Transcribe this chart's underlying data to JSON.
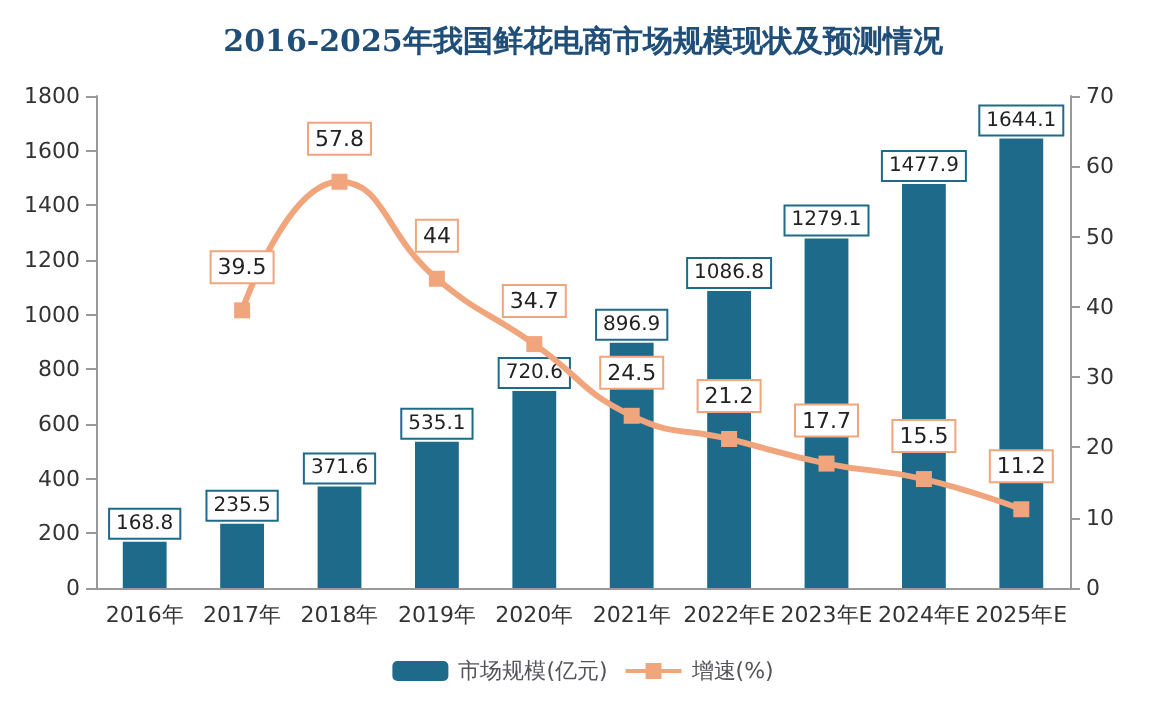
{
  "chart_data": {
    "type": "bar",
    "title": "2016-2025年我国鲜花电商市场规模现状及预测情况",
    "categories": [
      "2016年",
      "2017年",
      "2018年",
      "2019年",
      "2020年",
      "2021年",
      "2022年E",
      "2023年E",
      "2024年E",
      "2025年E"
    ],
    "series": [
      {
        "name": "市场规模(亿元)",
        "color": "#1d6a8b",
        "values": [
          168.8,
          235.5,
          371.6,
          535.1,
          720.6,
          896.9,
          1086.8,
          1279.1,
          1477.9,
          1644.1
        ]
      },
      {
        "name": "增速(%)",
        "type": "line",
        "axis": "y2",
        "color": "#f0a57c",
        "marker": "square",
        "values": [
          null,
          39.5,
          57.8,
          44,
          34.7,
          24.5,
          21.2,
          17.7,
          15.5,
          11.2
        ]
      }
    ],
    "ylim": [
      0,
      1800
    ],
    "yticks": [
      0,
      200,
      400,
      600,
      800,
      1000,
      1200,
      1400,
      1600,
      1800
    ],
    "y2lim": [
      0,
      70
    ],
    "y2ticks": [
      0,
      10,
      20,
      30,
      40,
      50,
      60,
      70
    ],
    "grid": false,
    "legend": "bottom",
    "data_labels": true
  }
}
